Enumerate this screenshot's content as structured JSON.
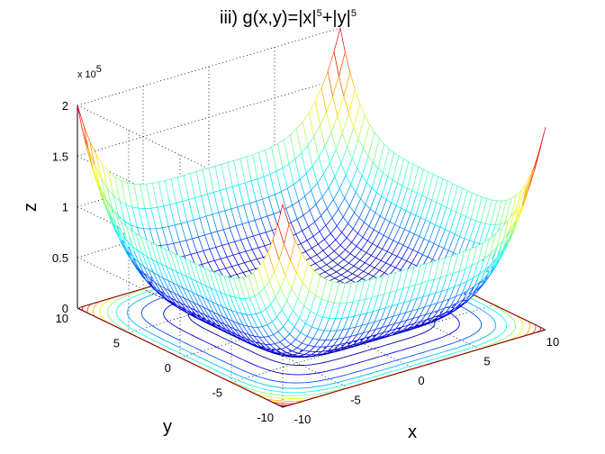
{
  "chart_data": {
    "type": "surface",
    "title_main": "iii)  g(x,y)=|x|",
    "title_exp1": "5",
    "title_plus": "+|y|",
    "title_exp2": "5",
    "xlabel": "x",
    "ylabel": "y",
    "zlabel": "z",
    "z_scale_prefix": "x 10",
    "z_scale_exp": "5",
    "xlim": [
      -10,
      10
    ],
    "ylim": [
      -10,
      10
    ],
    "zlim": [
      0,
      200000
    ],
    "x_ticks": [
      "-10",
      "-5",
      "0",
      "5",
      "10"
    ],
    "y_ticks": [
      "-10",
      "-5",
      "0",
      "5",
      "10"
    ],
    "z_ticks": [
      "0",
      "0.5",
      "1",
      "1.5",
      "2"
    ],
    "grid": true,
    "colormap": "jet",
    "contour_projection": true,
    "corner_values": [
      {
        "x": -10,
        "y": -10,
        "z": 200000
      },
      {
        "x": 10,
        "y": -10,
        "z": 200000
      },
      {
        "x": -10,
        "y": 10,
        "z": 200000
      },
      {
        "x": 10,
        "y": 10,
        "z": 200000
      }
    ],
    "minimum": {
      "x": 0,
      "y": 0,
      "z": 0
    }
  }
}
